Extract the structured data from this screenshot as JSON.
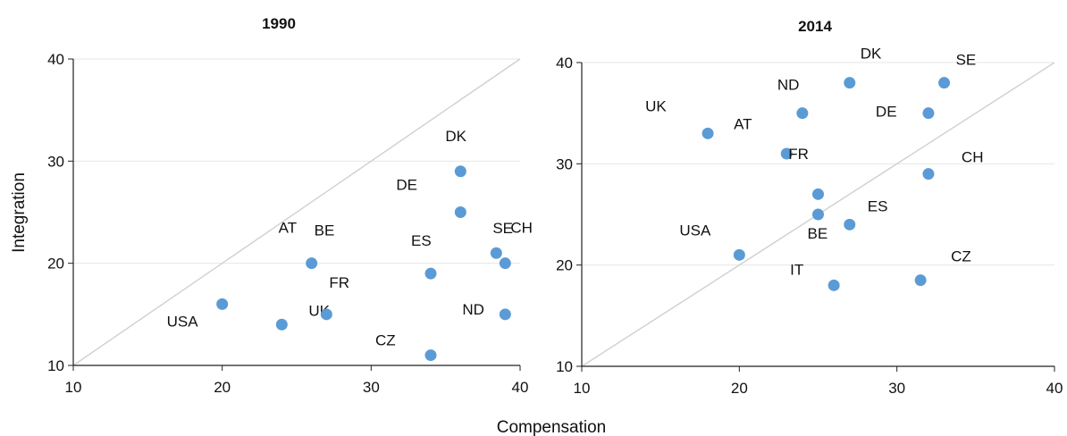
{
  "figure": {
    "xlabel": "Compensation",
    "ylabel": "Integration"
  },
  "colors": {
    "marker": "#5b9bd5",
    "diagonal": "#d0d0d0",
    "gridline": "#e6e6e6",
    "axis": "#222222"
  },
  "chart_data": [
    {
      "type": "scatter",
      "title": "1990",
      "xlabel": "Compensation",
      "ylabel": "Integration",
      "xlim": [
        10,
        40
      ],
      "ylim": [
        10,
        40
      ],
      "xticks": [
        "10",
        "20",
        "30",
        "40"
      ],
      "yticks": [
        "10",
        "20",
        "30",
        "40"
      ],
      "grid": "horizontal",
      "reference_line": "y = x",
      "points": [
        {
          "label": "USA",
          "x": 20,
          "y": 16
        },
        {
          "label": "UK",
          "x": 24,
          "y": 14
        },
        {
          "label": "AT",
          "x": 26,
          "y": 20
        },
        {
          "label": "BE",
          "x": 26,
          "y": 20
        },
        {
          "label": "FR",
          "x": 27,
          "y": 15
        },
        {
          "label": "ES",
          "x": 34,
          "y": 19
        },
        {
          "label": "CZ",
          "x": 34,
          "y": 11
        },
        {
          "label": "DK",
          "x": 36,
          "y": 29
        },
        {
          "label": "DE",
          "x": 36,
          "y": 25
        },
        {
          "label": "SE",
          "x": 38.4,
          "y": 21
        },
        {
          "label": "CH",
          "x": 39,
          "y": 20
        },
        {
          "label": "ND",
          "x": 39,
          "y": 15
        }
      ]
    },
    {
      "type": "scatter",
      "title": "2014",
      "xlabel": "Compensation",
      "ylabel": "Integration",
      "xlim": [
        10,
        40
      ],
      "ylim": [
        10,
        40
      ],
      "xticks": [
        "10",
        "20",
        "30",
        "40"
      ],
      "yticks": [
        "10",
        "20",
        "30",
        "40"
      ],
      "grid": "horizontal",
      "reference_line": "y = x",
      "points": [
        {
          "label": "UK",
          "x": 18,
          "y": 33
        },
        {
          "label": "AT",
          "x": 18,
          "y": 33
        },
        {
          "label": "USA",
          "x": 20,
          "y": 21
        },
        {
          "label": "FR",
          "x": 23,
          "y": 31
        },
        {
          "label": "ND",
          "x": 24,
          "y": 35
        },
        {
          "label": "",
          "x": 25,
          "y": 27
        },
        {
          "label": "BE",
          "x": 25,
          "y": 25
        },
        {
          "label": "IT",
          "x": 26,
          "y": 18
        },
        {
          "label": "ES",
          "x": 27,
          "y": 24
        },
        {
          "label": "DK",
          "x": 27,
          "y": 38
        },
        {
          "label": "CZ",
          "x": 31.5,
          "y": 18.5
        },
        {
          "label": "DE",
          "x": 32,
          "y": 35
        },
        {
          "label": "CH",
          "x": 32,
          "y": 29
        },
        {
          "label": "SE",
          "x": 33,
          "y": 38
        }
      ]
    }
  ]
}
